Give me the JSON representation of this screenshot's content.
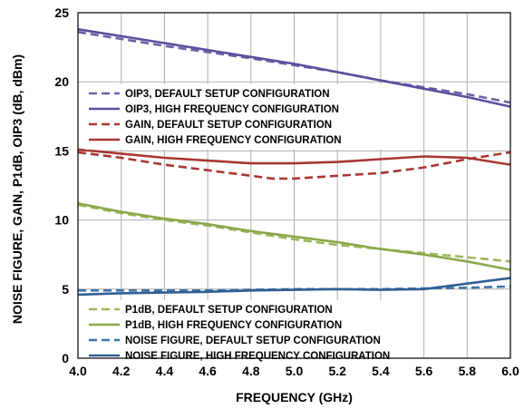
{
  "chart_data": {
    "type": "line",
    "title": "",
    "xlabel": "FREQUENCY (GHz)",
    "ylabel": "NOISE FIGURE, GAIN, P1dB, OIP3 (dB, dBm)",
    "xlim": [
      4.0,
      6.0
    ],
    "ylim": [
      0,
      25
    ],
    "xticks": [
      "4.0",
      "4.2",
      "4.4",
      "4.6",
      "4.8",
      "5.0",
      "5.2",
      "5.4",
      "5.6",
      "5.8",
      "6.0"
    ],
    "yticks": [
      "0",
      "5",
      "10",
      "15",
      "20",
      "25"
    ],
    "grid": true,
    "legends": [
      {
        "placement": "upper-left",
        "entries": [
          "OIP3, DEFAULT SETUP CONFIGURATION",
          "OIP3, HIGH FREQUENCY CONFIGURATION",
          "GAIN, DEFAULT SETUP CONFIGURATION",
          "GAIN, HIGH FREQUENCY CONFIGURATION"
        ]
      },
      {
        "placement": "lower-left",
        "entries": [
          "P1dB, DEFAULT SETUP CONFIGURATION",
          "P1dB, HIGH FREQUENCY CONFIGURATION",
          "NOISE FIGURE, DEFAULT SETUP CONFIGURATION",
          "NOISE FIGURE, HIGH FREQUENCY CONFIGURATION"
        ]
      }
    ],
    "series": [
      {
        "name": "OIP3, DEFAULT SETUP CONFIGURATION",
        "color": "#6b63a6",
        "dashed": true,
        "legend": 0,
        "points": [
          [
            4.0,
            23.6
          ],
          [
            4.4,
            22.6
          ],
          [
            4.8,
            21.7
          ],
          [
            5.0,
            21.2
          ],
          [
            5.2,
            20.7
          ],
          [
            5.4,
            20.1
          ],
          [
            5.6,
            19.6
          ],
          [
            5.8,
            19.1
          ],
          [
            6.0,
            18.5
          ]
        ]
      },
      {
        "name": "OIP3, HIGH FREQUENCY CONFIGURATION",
        "color": "#5b4f9e",
        "dashed": false,
        "legend": 0,
        "points": [
          [
            4.0,
            23.8
          ],
          [
            4.4,
            22.8
          ],
          [
            4.8,
            21.8
          ],
          [
            5.0,
            21.3
          ],
          [
            5.2,
            20.7
          ],
          [
            5.4,
            20.1
          ],
          [
            5.6,
            19.5
          ],
          [
            5.8,
            18.9
          ],
          [
            6.0,
            18.2
          ]
        ]
      },
      {
        "name": "GAIN, DEFAULT SETUP CONFIGURATION",
        "color": "#a83832",
        "dashed": true,
        "legend": 0,
        "points": [
          [
            4.0,
            14.9
          ],
          [
            4.2,
            14.5
          ],
          [
            4.4,
            14.0
          ],
          [
            4.6,
            13.6
          ],
          [
            4.8,
            13.2
          ],
          [
            4.9,
            13.0
          ],
          [
            5.0,
            13.0
          ],
          [
            5.1,
            13.1
          ],
          [
            5.2,
            13.2
          ],
          [
            5.4,
            13.4
          ],
          [
            5.6,
            13.8
          ],
          [
            5.8,
            14.4
          ],
          [
            6.0,
            14.9
          ]
        ]
      },
      {
        "name": "GAIN, HIGH FREQUENCY CONFIGURATION",
        "color": "#a83832",
        "dashed": false,
        "legend": 0,
        "points": [
          [
            4.0,
            15.1
          ],
          [
            4.2,
            14.8
          ],
          [
            4.4,
            14.5
          ],
          [
            4.6,
            14.3
          ],
          [
            4.8,
            14.1
          ],
          [
            5.0,
            14.1
          ],
          [
            5.2,
            14.2
          ],
          [
            5.4,
            14.4
          ],
          [
            5.6,
            14.6
          ],
          [
            5.8,
            14.5
          ],
          [
            6.0,
            14.0
          ]
        ]
      },
      {
        "name": "P1dB, DEFAULT SETUP CONFIGURATION",
        "color": "#9bb75a",
        "dashed": true,
        "legend": 1,
        "points": [
          [
            4.0,
            11.1
          ],
          [
            4.2,
            10.5
          ],
          [
            4.4,
            10.0
          ],
          [
            4.6,
            9.6
          ],
          [
            4.8,
            9.1
          ],
          [
            5.0,
            8.6
          ],
          [
            5.2,
            8.2
          ],
          [
            5.4,
            7.9
          ],
          [
            5.6,
            7.6
          ],
          [
            5.8,
            7.3
          ],
          [
            6.0,
            7.0
          ]
        ]
      },
      {
        "name": "P1dB, HIGH FREQUENCY CONFIGURATION",
        "color": "#8aa84a",
        "dashed": false,
        "legend": 1,
        "points": [
          [
            4.0,
            11.2
          ],
          [
            4.2,
            10.6
          ],
          [
            4.4,
            10.1
          ],
          [
            4.6,
            9.7
          ],
          [
            4.8,
            9.2
          ],
          [
            5.0,
            8.8
          ],
          [
            5.2,
            8.4
          ],
          [
            5.4,
            7.9
          ],
          [
            5.6,
            7.5
          ],
          [
            5.8,
            7.0
          ],
          [
            6.0,
            6.4
          ]
        ]
      },
      {
        "name": "NOISE FIGURE, DEFAULT SETUP CONFIGURATION",
        "color": "#3e74a8",
        "dashed": true,
        "legend": 1,
        "points": [
          [
            4.0,
            4.9
          ],
          [
            4.2,
            4.9
          ],
          [
            4.4,
            4.9
          ],
          [
            4.6,
            4.9
          ],
          [
            4.8,
            4.95
          ],
          [
            5.0,
            5.0
          ],
          [
            5.2,
            5.0
          ],
          [
            5.4,
            5.0
          ],
          [
            5.6,
            5.05
          ],
          [
            5.8,
            5.1
          ],
          [
            6.0,
            5.2
          ]
        ]
      },
      {
        "name": "NOISE FIGURE, HIGH FREQUENCY CONFIGURATION",
        "color": "#2f5f94",
        "dashed": false,
        "legend": 1,
        "points": [
          [
            4.0,
            4.6
          ],
          [
            4.2,
            4.7
          ],
          [
            4.4,
            4.75
          ],
          [
            4.6,
            4.8
          ],
          [
            4.8,
            4.9
          ],
          [
            5.0,
            4.95
          ],
          [
            5.2,
            5.0
          ],
          [
            5.4,
            4.95
          ],
          [
            5.6,
            5.0
          ],
          [
            5.8,
            5.4
          ],
          [
            6.0,
            5.8
          ]
        ]
      }
    ]
  }
}
